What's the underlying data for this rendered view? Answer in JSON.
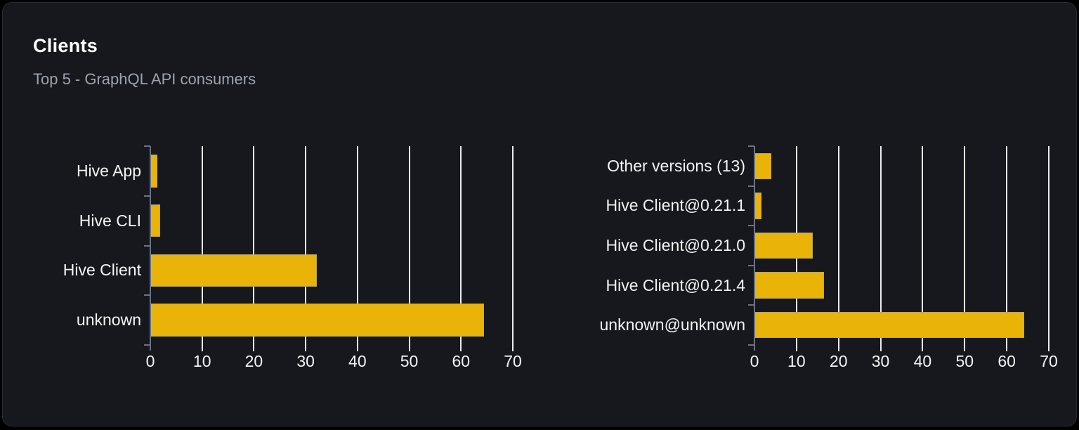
{
  "panel": {
    "title": "Clients",
    "subtitle": "Top 5 - GraphQL API consumers"
  },
  "colors": {
    "page_bg": "#000000",
    "card_bg": "#16181d",
    "card_border": "#272b33",
    "bar_fill": "#eab308",
    "grid_line": "#e9ebf0",
    "axis_line": "#6b7280",
    "title_text": "#ffffff",
    "subtitle_text": "#9ca3af",
    "label_text": "#f4f4f5"
  },
  "chart_data": [
    {
      "type": "bar",
      "orientation": "horizontal",
      "title": "",
      "categories": [
        "Hive App",
        "Hive CLI",
        "Hive Client",
        "unknown"
      ],
      "values": [
        1.4,
        1.9,
        32.2,
        64.5
      ],
      "xlim": [
        0,
        70
      ],
      "xticks": [
        0,
        10,
        20,
        30,
        40,
        50,
        60,
        70
      ],
      "grid": true,
      "legend": "none",
      "bar_color": "#eab308"
    },
    {
      "type": "bar",
      "orientation": "horizontal",
      "title": "",
      "categories": [
        "Other versions (13)",
        "Hive Client@0.21.1",
        "Hive Client@0.21.0",
        "Hive Client@0.21.4",
        "unknown@unknown"
      ],
      "values": [
        4.0,
        1.7,
        13.8,
        16.6,
        64.1
      ],
      "xlim": [
        0,
        70
      ],
      "xticks": [
        0,
        10,
        20,
        30,
        40,
        50,
        60,
        70
      ],
      "grid": true,
      "legend": "none",
      "bar_color": "#eab308"
    }
  ]
}
